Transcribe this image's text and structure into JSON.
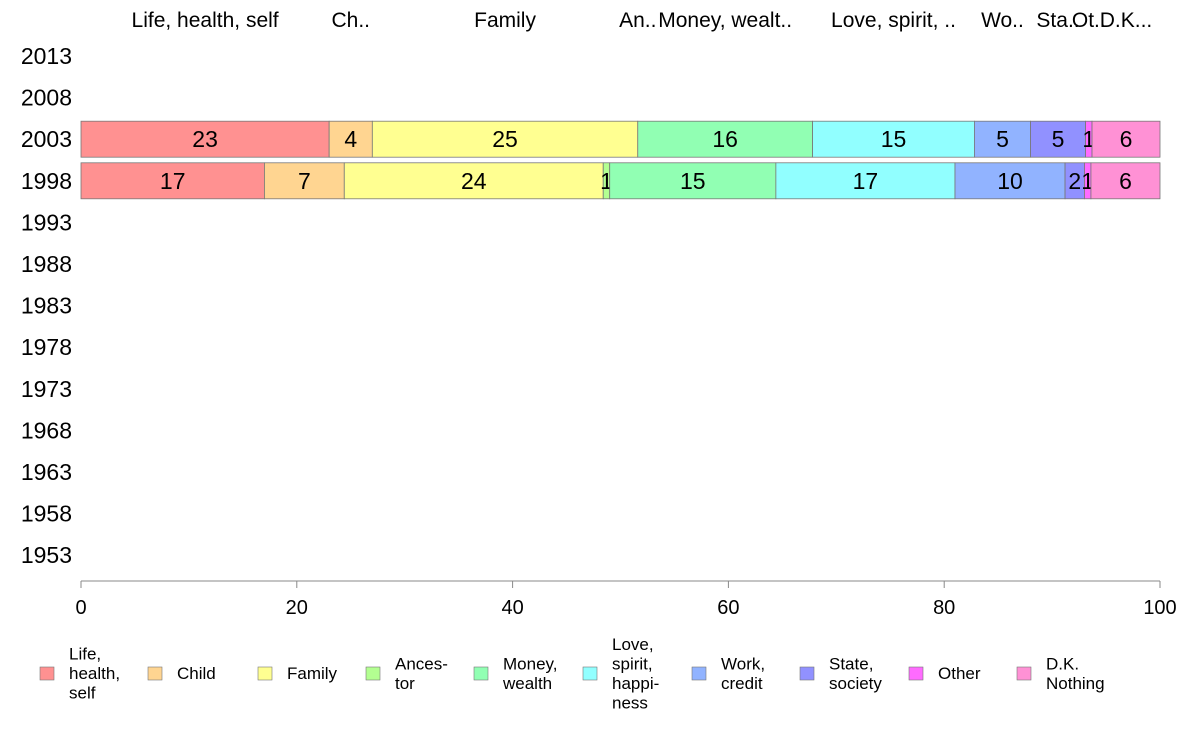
{
  "chart_data": {
    "type": "bar",
    "orientation": "horizontal",
    "stacked": true,
    "categories": [
      "2013",
      "2008",
      "2003",
      "1998",
      "1993",
      "1988",
      "1983",
      "1978",
      "1973",
      "1968",
      "1963",
      "1958",
      "1953"
    ],
    "column_headers": [
      "Life, health, self",
      "Ch..",
      "Family",
      "An..",
      "Money, wealt..",
      "Love, spirit, ..",
      "Wo..",
      "Sta..",
      "Ot..",
      "D.K..."
    ],
    "series": [
      {
        "name": "Life, health, self",
        "legend": [
          "Life,",
          "health,",
          "self"
        ],
        "color": "#ff9191",
        "values": [
          null,
          null,
          23,
          17,
          null,
          null,
          null,
          null,
          null,
          null,
          null,
          null,
          null
        ],
        "labels": [
          null,
          null,
          "23",
          "17",
          null,
          null,
          null,
          null,
          null,
          null,
          null,
          null,
          null
        ]
      },
      {
        "name": "Child",
        "legend": [
          "Child"
        ],
        "color": "#ffd591",
        "values": [
          null,
          null,
          4,
          7.4,
          null,
          null,
          null,
          null,
          null,
          null,
          null,
          null,
          null
        ],
        "labels": [
          null,
          null,
          "4",
          "7",
          null,
          null,
          null,
          null,
          null,
          null,
          null,
          null,
          null
        ]
      },
      {
        "name": "Family",
        "legend": [
          "Family"
        ],
        "color": "#ffff91",
        "values": [
          null,
          null,
          24.6,
          24,
          null,
          null,
          null,
          null,
          null,
          null,
          null,
          null,
          null
        ],
        "labels": [
          null,
          null,
          "25",
          "24",
          null,
          null,
          null,
          null,
          null,
          null,
          null,
          null,
          null
        ]
      },
      {
        "name": "Ancestor",
        "legend": [
          "Ances-",
          "tor"
        ],
        "color": "#b3ff91",
        "values": [
          null,
          null,
          0,
          0.6,
          null,
          null,
          null,
          null,
          null,
          null,
          null,
          null,
          null
        ],
        "labels": [
          null,
          null,
          null,
          "1",
          null,
          null,
          null,
          null,
          null,
          null,
          null,
          null,
          null
        ]
      },
      {
        "name": "Money, wealth",
        "legend": [
          "Money,",
          "wealth"
        ],
        "color": "#91ffb3",
        "values": [
          null,
          null,
          16.2,
          15.4,
          null,
          null,
          null,
          null,
          null,
          null,
          null,
          null,
          null
        ],
        "labels": [
          null,
          null,
          "16",
          "15",
          null,
          null,
          null,
          null,
          null,
          null,
          null,
          null,
          null
        ]
      },
      {
        "name": "Love, spirit, happiness",
        "legend": [
          "Love,",
          "spirit,",
          "happi-",
          "ness"
        ],
        "color": "#91ffff",
        "values": [
          null,
          null,
          15,
          16.6,
          null,
          null,
          null,
          null,
          null,
          null,
          null,
          null,
          null
        ],
        "labels": [
          null,
          null,
          "15",
          "17",
          null,
          null,
          null,
          null,
          null,
          null,
          null,
          null,
          null
        ]
      },
      {
        "name": "Work, credit",
        "legend": [
          "Work,",
          "credit"
        ],
        "color": "#91b3ff",
        "values": [
          null,
          null,
          5.2,
          10.2,
          null,
          null,
          null,
          null,
          null,
          null,
          null,
          null,
          null
        ],
        "labels": [
          null,
          null,
          "5",
          "10",
          null,
          null,
          null,
          null,
          null,
          null,
          null,
          null,
          null
        ]
      },
      {
        "name": "State, society",
        "legend": [
          "State,",
          "society"
        ],
        "color": "#9191ff",
        "values": [
          null,
          null,
          5.1,
          1.8,
          null,
          null,
          null,
          null,
          null,
          null,
          null,
          null,
          null
        ],
        "labels": [
          null,
          null,
          "5",
          "2",
          null,
          null,
          null,
          null,
          null,
          null,
          null,
          null,
          null
        ]
      },
      {
        "name": "Other",
        "legend": [
          "Other"
        ],
        "color": "#ff6bff",
        "values": [
          null,
          null,
          0.6,
          0.6,
          null,
          null,
          null,
          null,
          null,
          null,
          null,
          null,
          null
        ],
        "labels": [
          null,
          null,
          "1",
          "1",
          null,
          null,
          null,
          null,
          null,
          null,
          null,
          null,
          null
        ]
      },
      {
        "name": "D.K. Nothing",
        "legend": [
          "D.K.",
          "Nothing"
        ],
        "color": "#ff91d5",
        "values": [
          null,
          null,
          6.3,
          6.4,
          null,
          null,
          null,
          null,
          null,
          null,
          null,
          null,
          null
        ],
        "labels": [
          null,
          null,
          "6",
          "6",
          null,
          null,
          null,
          null,
          null,
          null,
          null,
          null,
          null
        ]
      }
    ],
    "xlim": [
      0,
      100
    ],
    "xticks": [
      "0",
      "20",
      "40",
      "60",
      "80",
      "100"
    ],
    "grid": false,
    "legend_position": "bottom"
  }
}
